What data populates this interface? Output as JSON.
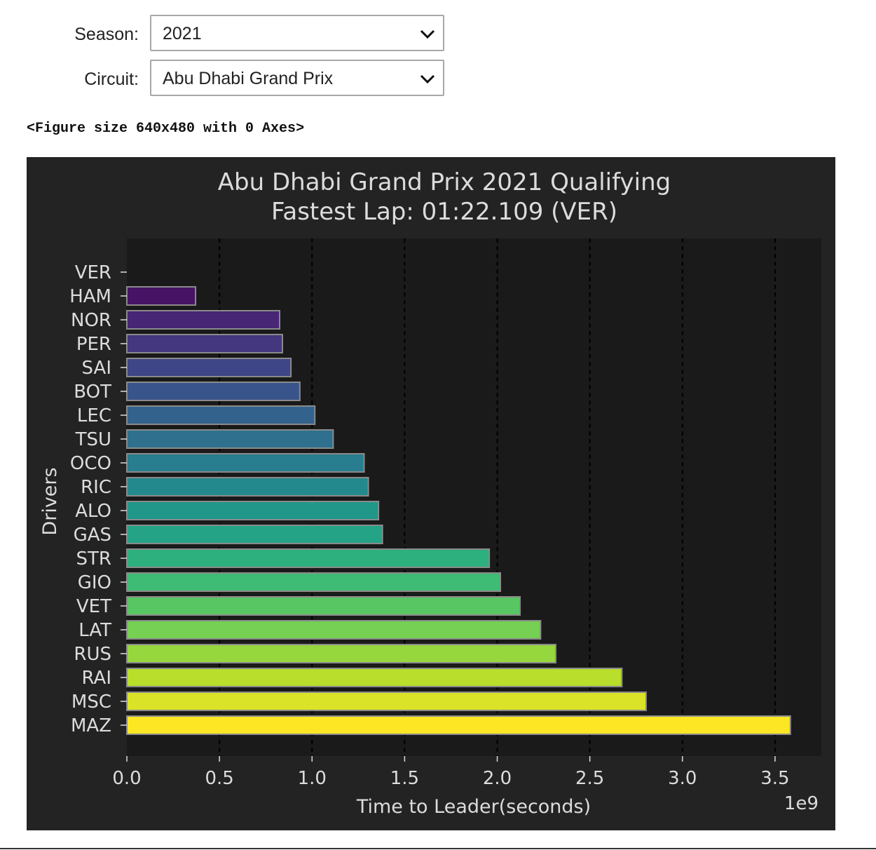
{
  "controls": {
    "season": {
      "label": "Season:",
      "value": "2021"
    },
    "circuit": {
      "label": "Circuit:",
      "value": "Abu Dhabi Grand Prix"
    }
  },
  "figure_repr": "<Figure size 640x480 with 0 Axes>",
  "chart_data": {
    "type": "bar",
    "orientation": "horizontal",
    "title": "Abu Dhabi Grand Prix 2021 Qualifying",
    "subtitle": "Fastest Lap: 01:22.109 (VER)",
    "xlabel": "Time to Leader(seconds)",
    "ylabel": "Drivers",
    "offset_label": "1e9",
    "xlim": [
      0,
      3.75
    ],
    "xticks": [
      0.0,
      0.5,
      1.0,
      1.5,
      2.0,
      2.5,
      3.0,
      3.5
    ],
    "xtick_labels": [
      "0.0",
      "0.5",
      "1.0",
      "1.5",
      "2.0",
      "2.5",
      "3.0",
      "3.5"
    ],
    "grid": "vertical dashed",
    "categories": [
      "VER",
      "HAM",
      "NOR",
      "PER",
      "SAI",
      "BOT",
      "LEC",
      "TSU",
      "OCO",
      "RIC",
      "ALO",
      "GAS",
      "STR",
      "GIO",
      "VET",
      "LAT",
      "RUS",
      "RAI",
      "MSC",
      "MAZ"
    ],
    "values": [
      0.0,
      0.371,
      0.825,
      0.84,
      0.886,
      0.934,
      1.015,
      1.114,
      1.281,
      1.304,
      1.359,
      1.38,
      1.957,
      2.017,
      2.123,
      2.234,
      2.316,
      2.673,
      2.804,
      3.583
    ],
    "colormap": "viridis",
    "colors": {
      "figure_bg": "#232323",
      "axes_bg": "#1a1a1a",
      "text": "#dcdcdc",
      "bar_edge": "#8a8a8a"
    }
  }
}
